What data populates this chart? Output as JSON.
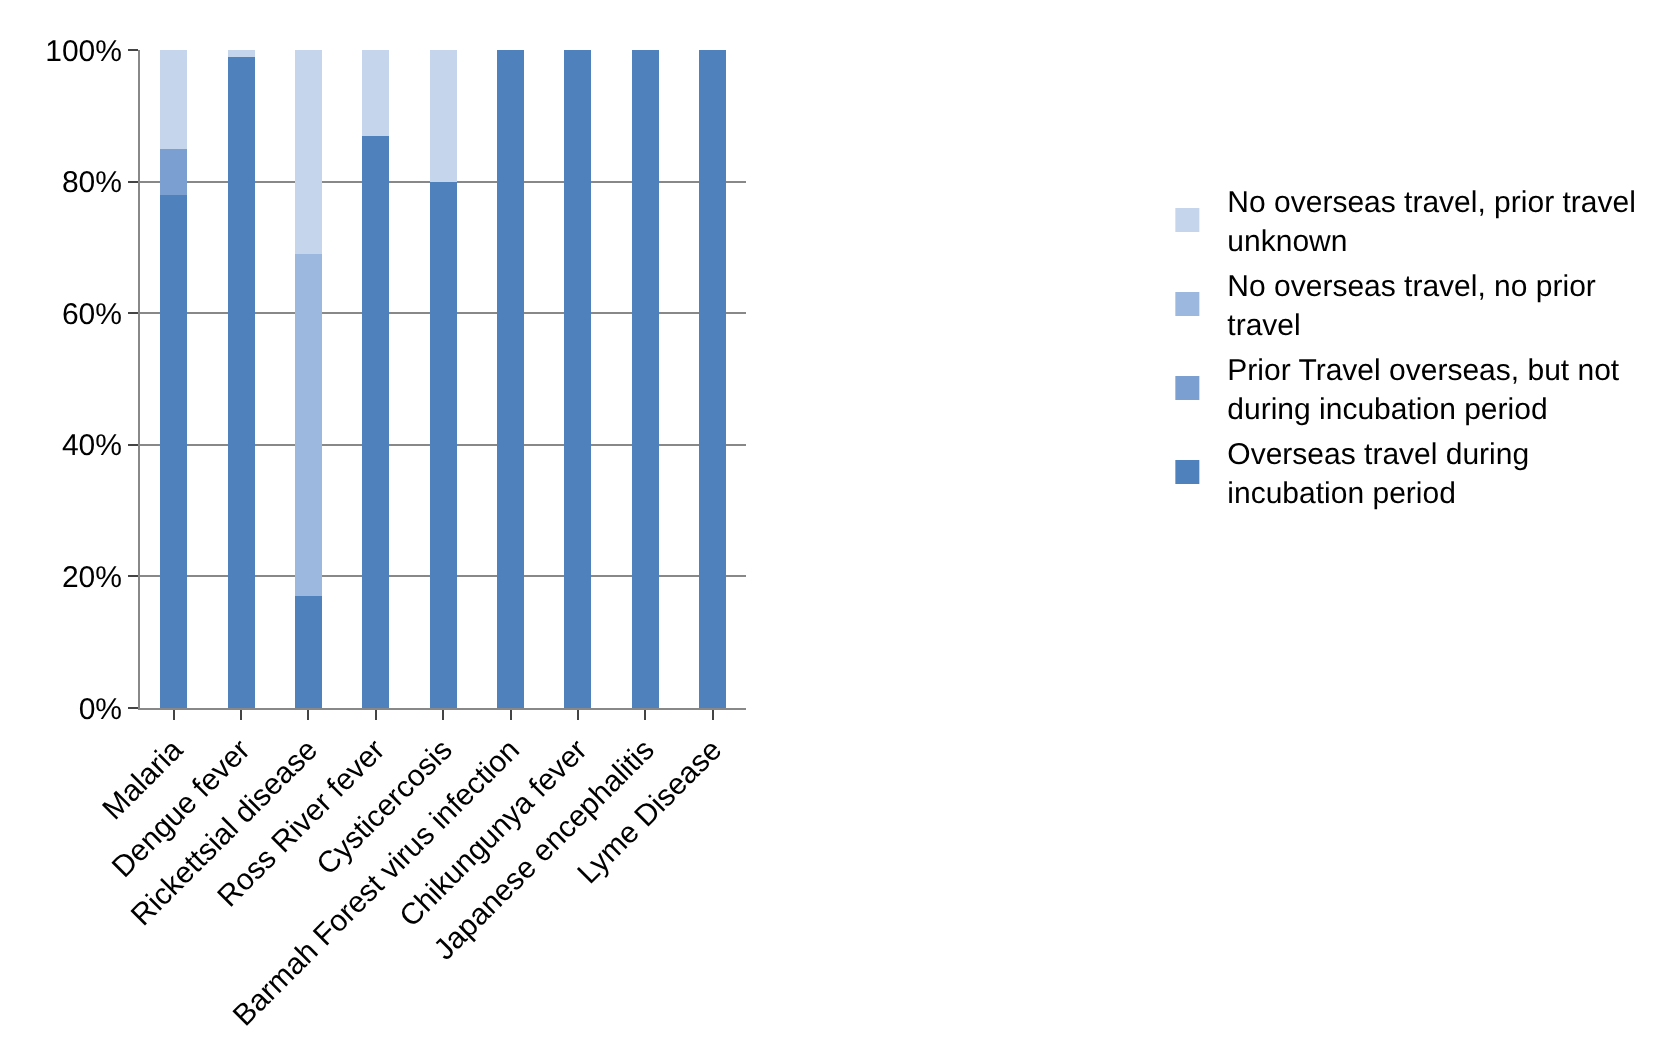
{
  "chart_data": {
    "type": "bar",
    "stacked": true,
    "categories": [
      "Malaria",
      "Dengue fever",
      "Rickettsial disease",
      "Ross River fever",
      "Cysticercosis",
      "Barmah Forest virus infection",
      "Chikungunya fever",
      "Japanese encephalitis",
      "Lyme Disease"
    ],
    "series": [
      {
        "name": "Overseas travel during incubation period",
        "color": "#4f81bd",
        "values": [
          78,
          99,
          17,
          87,
          80,
          100,
          100,
          100,
          100
        ]
      },
      {
        "name": "Prior Travel overseas, but not during incubation period",
        "color": "#7a9fd0",
        "values": [
          7,
          0,
          0,
          0,
          0,
          0,
          0,
          0,
          0
        ]
      },
      {
        "name": "No overseas travel, no prior travel",
        "color": "#9db8de",
        "values": [
          0,
          0,
          52,
          0,
          0,
          0,
          0,
          0,
          0
        ]
      },
      {
        "name": "No overseas travel, prior travel unknown",
        "color": "#c5d6ec",
        "values": [
          15,
          1,
          31,
          13,
          20,
          0,
          0,
          0,
          0
        ]
      }
    ],
    "ylim": [
      0,
      100
    ],
    "yticks": [
      {
        "value": 0,
        "label": "0%"
      },
      {
        "value": 20,
        "label": "20%"
      },
      {
        "value": 40,
        "label": "40%"
      },
      {
        "value": 60,
        "label": "60%"
      },
      {
        "value": 80,
        "label": "80%"
      },
      {
        "value": 100,
        "label": "100%"
      }
    ],
    "grid": "y",
    "legend": "right"
  }
}
